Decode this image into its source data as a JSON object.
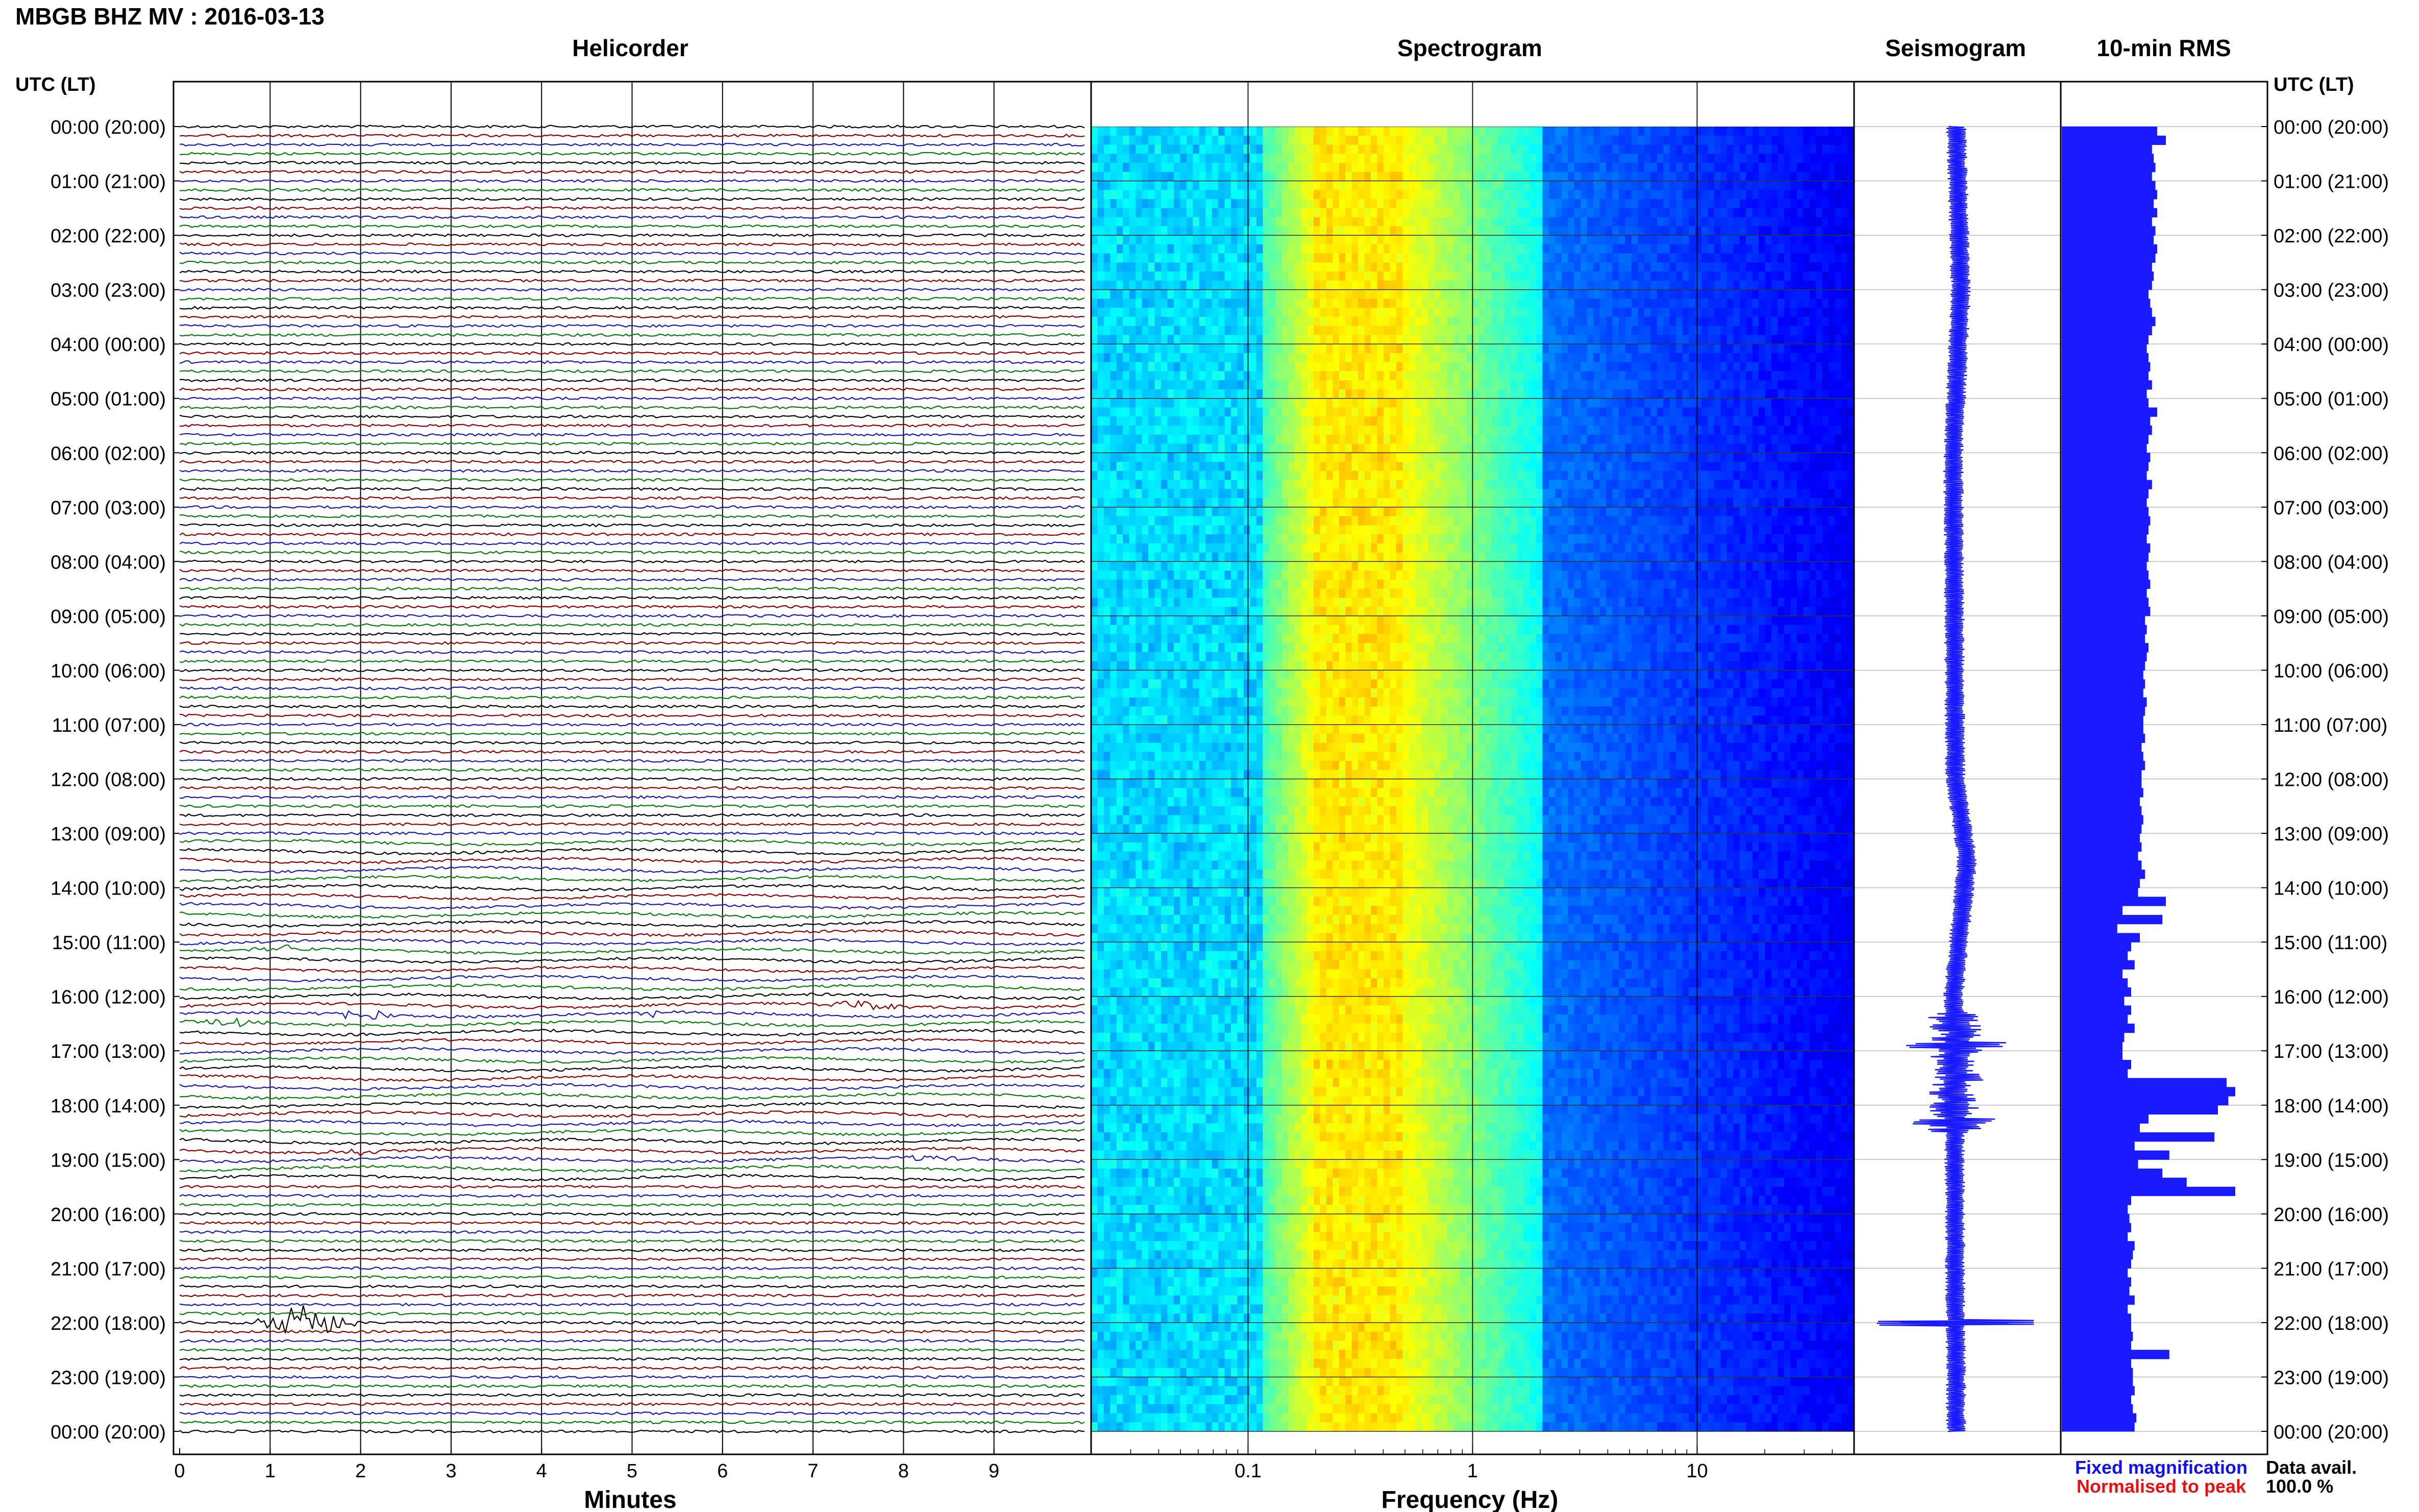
{
  "title": "MBGB BHZ MV : 2016-03-13",
  "panels": {
    "helicorder": "Helicorder",
    "spectrogram": "Spectrogram",
    "seismogram": "Seismogram",
    "rms": "10-min RMS"
  },
  "time_axis_label": "UTC (LT)",
  "time_ticks": [
    "00:00 (20:00)",
    "01:00 (21:00)",
    "02:00 (22:00)",
    "03:00 (23:00)",
    "04:00 (00:00)",
    "05:00 (01:00)",
    "06:00 (02:00)",
    "07:00 (03:00)",
    "08:00 (04:00)",
    "09:00 (05:00)",
    "10:00 (06:00)",
    "11:00 (07:00)",
    "12:00 (08:00)",
    "13:00 (09:00)",
    "14:00 (10:00)",
    "15:00 (11:00)",
    "16:00 (12:00)",
    "17:00 (13:00)",
    "18:00 (14:00)",
    "19:00 (15:00)",
    "20:00 (16:00)",
    "21:00 (17:00)",
    "22:00 (18:00)",
    "23:00 (19:00)",
    "00:00 (20:00)"
  ],
  "legend": {
    "fixed": "Fixed magnification",
    "fixed_color": "#1010e8",
    "normalised": "Normalised to peak",
    "normalised_color": "#e81010"
  },
  "data_avail": {
    "label": "Data avail.",
    "value": "100.0 %"
  },
  "colors": {
    "trace_cycle": [
      "#000000",
      "#8b0000",
      "#1a1ab0",
      "#0a7a0a"
    ],
    "seismogram": "#1a1aff",
    "rms": "#1a1aff"
  },
  "chart_data": [
    {
      "type": "helicorder",
      "title": "Helicorder",
      "xlabel": "Minutes",
      "xlim": [
        0,
        10
      ],
      "xticks": [
        "0",
        "1",
        "2",
        "3",
        "4",
        "5",
        "6",
        "7",
        "8",
        "9"
      ],
      "rows_per_hour": 6,
      "hours": 24,
      "events": [
        {
          "time_utc": "15:10",
          "minute": 1.2,
          "amp": 0.6
        },
        {
          "time_utc": "16:10",
          "minute": 7.5,
          "amp": 1.0
        },
        {
          "time_utc": "16:20",
          "minute": 2.0,
          "amp": 1.2
        },
        {
          "time_utc": "16:20",
          "minute": 5.2,
          "amp": 0.6
        },
        {
          "time_utc": "16:30",
          "minute": 0.6,
          "amp": 0.8
        },
        {
          "time_utc": "18:50",
          "minute": 2.0,
          "amp": 0.5
        },
        {
          "time_utc": "19:00",
          "minute": 8.3,
          "amp": 0.5
        },
        {
          "time_utc": "22:00",
          "minute": 1.4,
          "amp": 4.5
        }
      ]
    },
    {
      "type": "heatmap",
      "title": "Spectrogram",
      "xlabel": "Frequency (Hz)",
      "xscale": "log",
      "xlim": [
        0.02,
        50
      ],
      "xticks": [
        "0.1",
        "1",
        "10"
      ],
      "ylim_hours": [
        0,
        24
      ],
      "colormap": "jet"
    },
    {
      "type": "line",
      "title": "Seismogram",
      "notes_points_hours_vs_offset": [
        [
          0,
          0
        ],
        [
          3,
          0.5
        ],
        [
          6,
          -0.3
        ],
        [
          12,
          -0.1
        ],
        [
          13.5,
          1.2
        ],
        [
          16,
          -0.3
        ],
        [
          17,
          0.2
        ],
        [
          18,
          -0.2
        ],
        [
          24,
          0
        ]
      ],
      "spikes": [
        {
          "hour": 22,
          "amp": 3.0
        },
        {
          "hour": 16.9,
          "amp": 1.2
        },
        {
          "hour": 18.3,
          "amp": 0.8
        }
      ]
    },
    {
      "type": "bar",
      "title": "10-min RMS",
      "orientation": "horizontal",
      "values": [
        55,
        60,
        52,
        53,
        54,
        52,
        54,
        55,
        53,
        55,
        52,
        54,
        53,
        55,
        54,
        52,
        53,
        52,
        50,
        51,
        52,
        54,
        52,
        50,
        49,
        50,
        51,
        50,
        52,
        49,
        50,
        55,
        51,
        52,
        50,
        49,
        51,
        50,
        49,
        52,
        50,
        49,
        50,
        51,
        50,
        49,
        51,
        50,
        49,
        50,
        51,
        49,
        50,
        51,
        48,
        49,
        48,
        50,
        49,
        48,
        47,
        48,
        47,
        49,
        48,
        47,
        47,
        48,
        46,
        47,
        48,
        46,
        46,
        47,
        45,
        46,
        47,
        46,
        45,
        46,
        44,
        46,
        48,
        45,
        44,
        60,
        35,
        58,
        32,
        45,
        40,
        38,
        42,
        35,
        38,
        40,
        36,
        40,
        38,
        42,
        36,
        35,
        35,
        40,
        38,
        95,
        100,
        96,
        90,
        50,
        45,
        88,
        42,
        62,
        44,
        58,
        72,
        100,
        40,
        38,
        39,
        40,
        38,
        42,
        41,
        40,
        38,
        40,
        39,
        42,
        38,
        40,
        40,
        41,
        40,
        62,
        40,
        41,
        41,
        42,
        40,
        41,
        43,
        42
      ]
    }
  ]
}
